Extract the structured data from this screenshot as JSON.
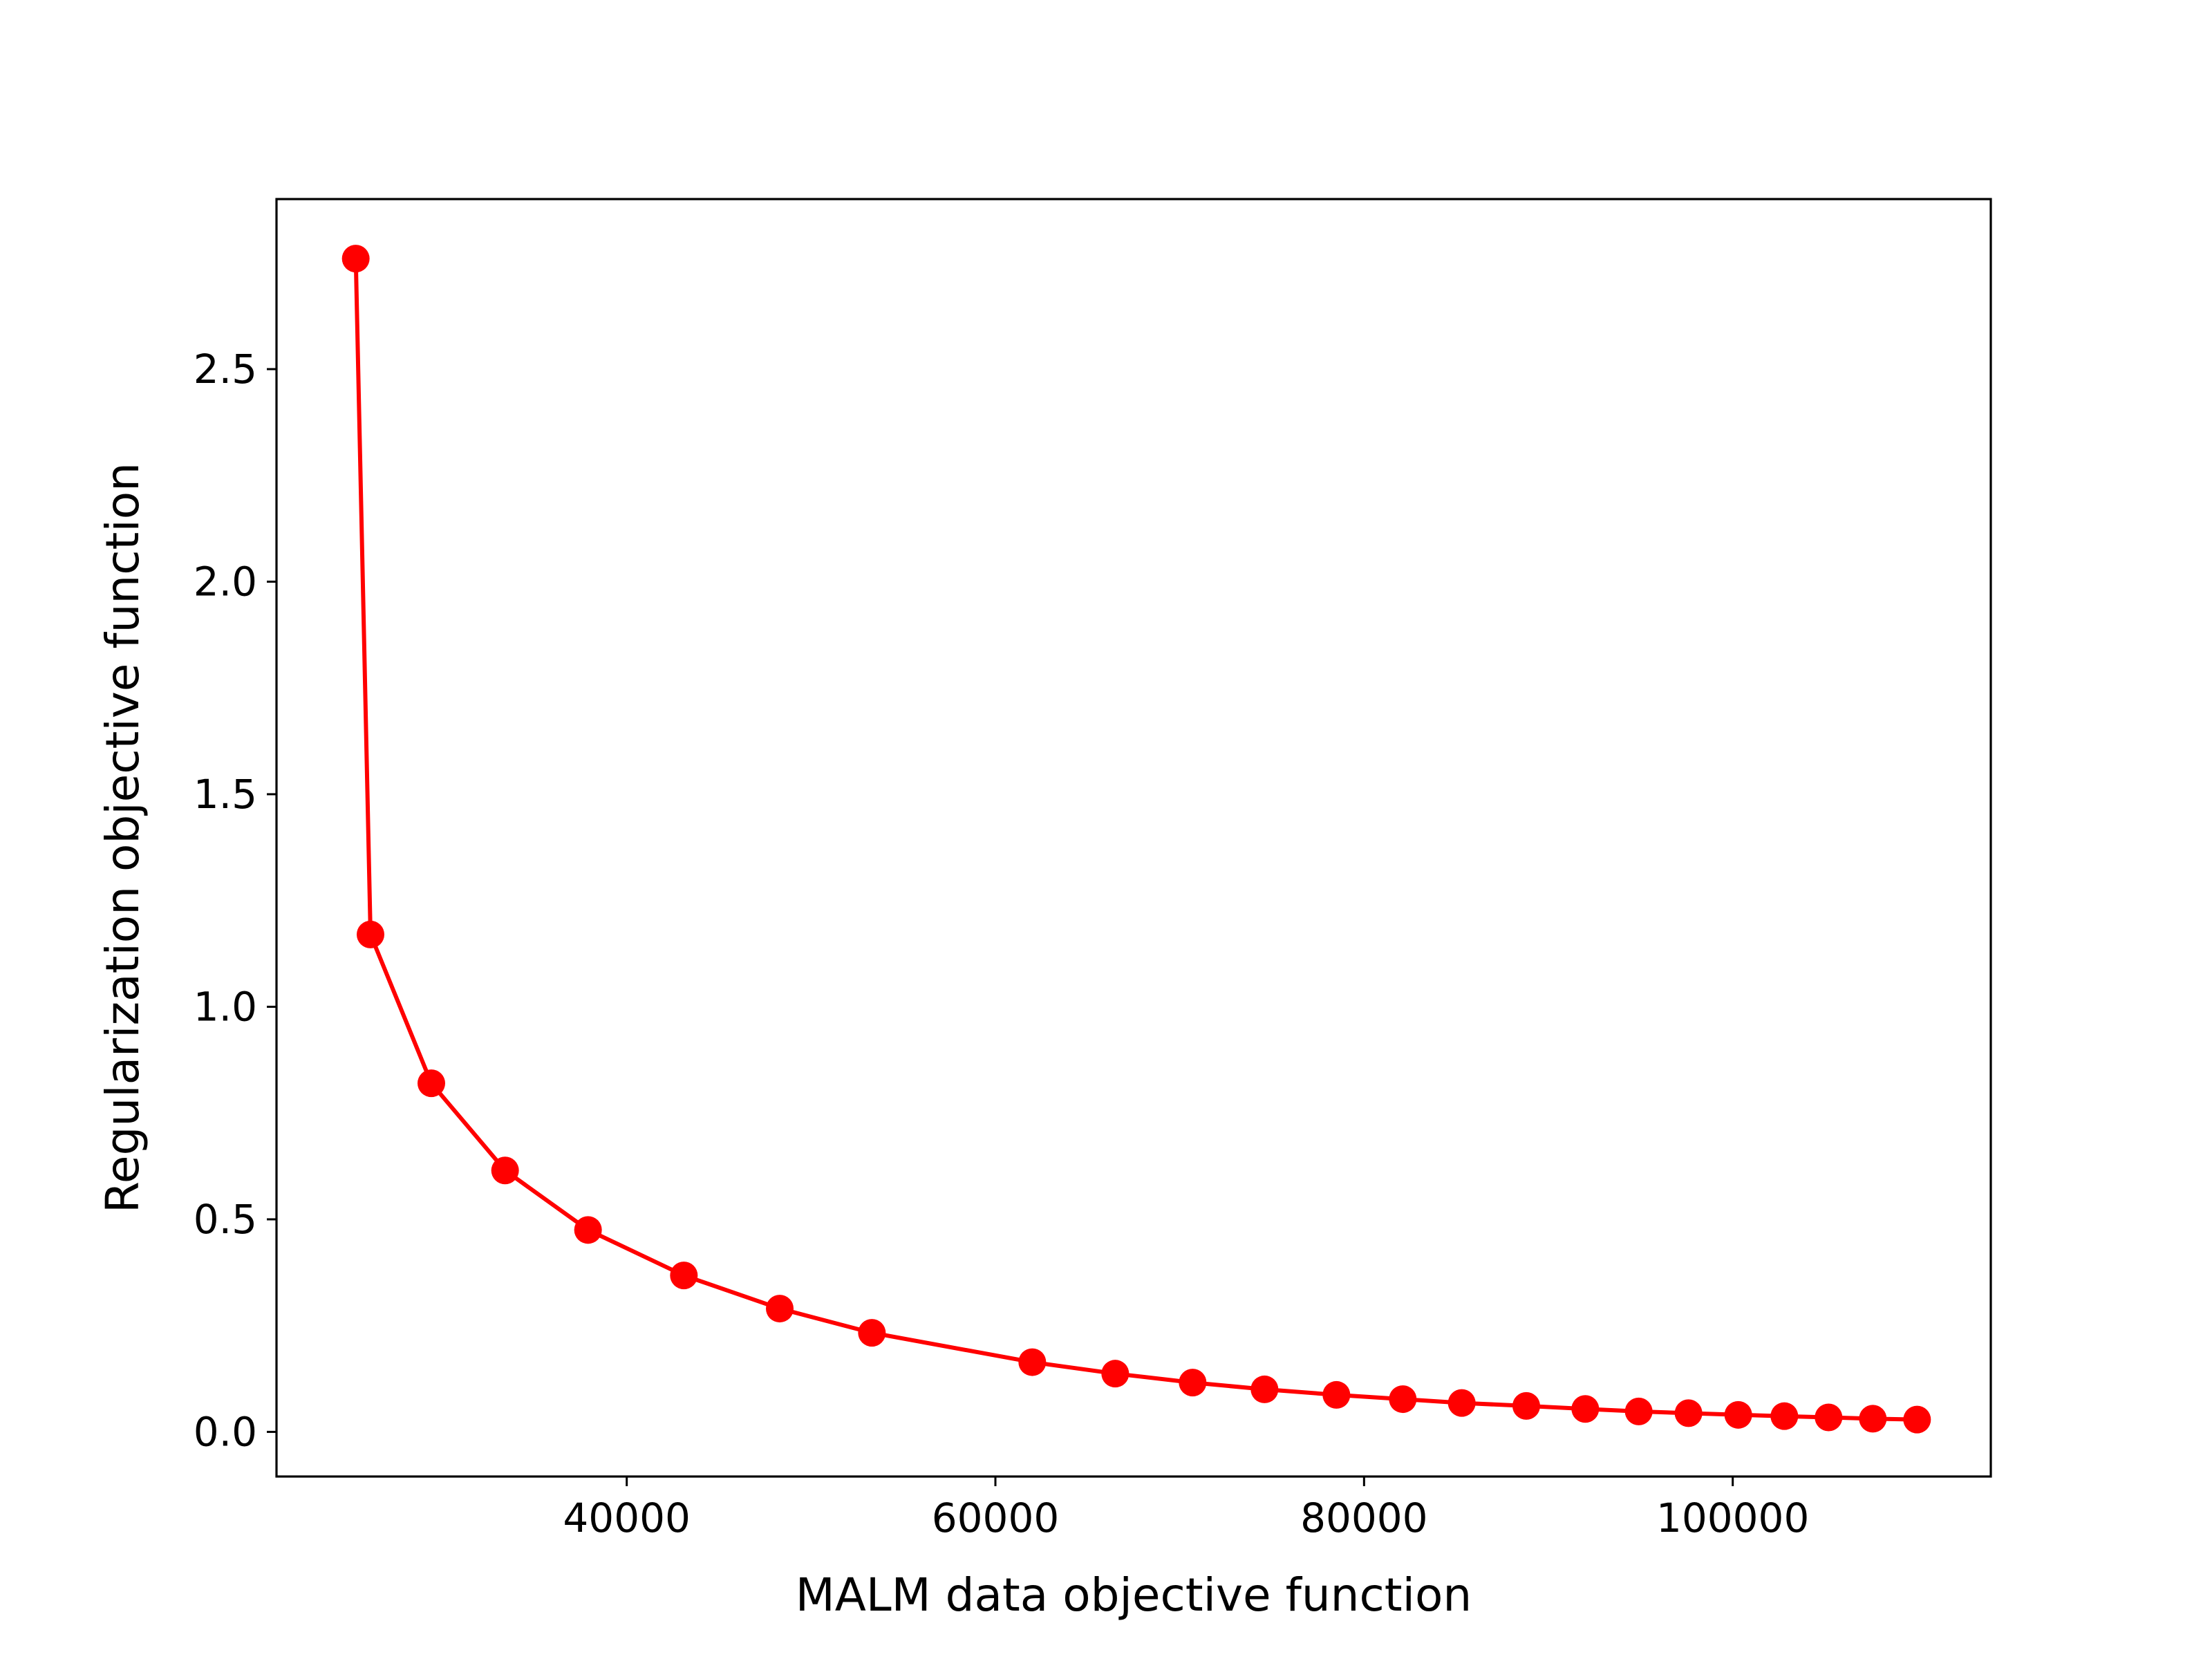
{
  "chart_data": {
    "type": "line",
    "title": "",
    "xlabel": "MALM data objective function",
    "ylabel": "Regularization objective function",
    "xlim": [
      21000,
      114000
    ],
    "ylim": [
      -0.105,
      2.9
    ],
    "x_ticks": [
      40000,
      60000,
      80000,
      100000
    ],
    "x_tick_labels": [
      "40000",
      "60000",
      "80000",
      "100000"
    ],
    "y_ticks": [
      0.0,
      0.5,
      1.0,
      1.5,
      2.0,
      2.5
    ],
    "y_tick_labels": [
      "0.0",
      "0.5",
      "1.0",
      "1.5",
      "2.0",
      "2.5"
    ],
    "grid": false,
    "legend": "none",
    "marker": "circle",
    "color": "#ff0000",
    "series": [
      {
        "x": [
          25300,
          26100,
          29400,
          33400,
          37900,
          43100,
          48300,
          53300,
          62000,
          66500,
          70700,
          74600,
          78500,
          82100,
          85300,
          88800,
          92000,
          94900,
          97600,
          100300,
          102800,
          105200,
          107600,
          110000
        ],
        "y": [
          2.76,
          1.17,
          0.82,
          0.615,
          0.475,
          0.368,
          0.29,
          0.233,
          0.164,
          0.137,
          0.116,
          0.1,
          0.087,
          0.077,
          0.068,
          0.061,
          0.054,
          0.048,
          0.044,
          0.04,
          0.037,
          0.034,
          0.031,
          0.029
        ]
      }
    ]
  }
}
